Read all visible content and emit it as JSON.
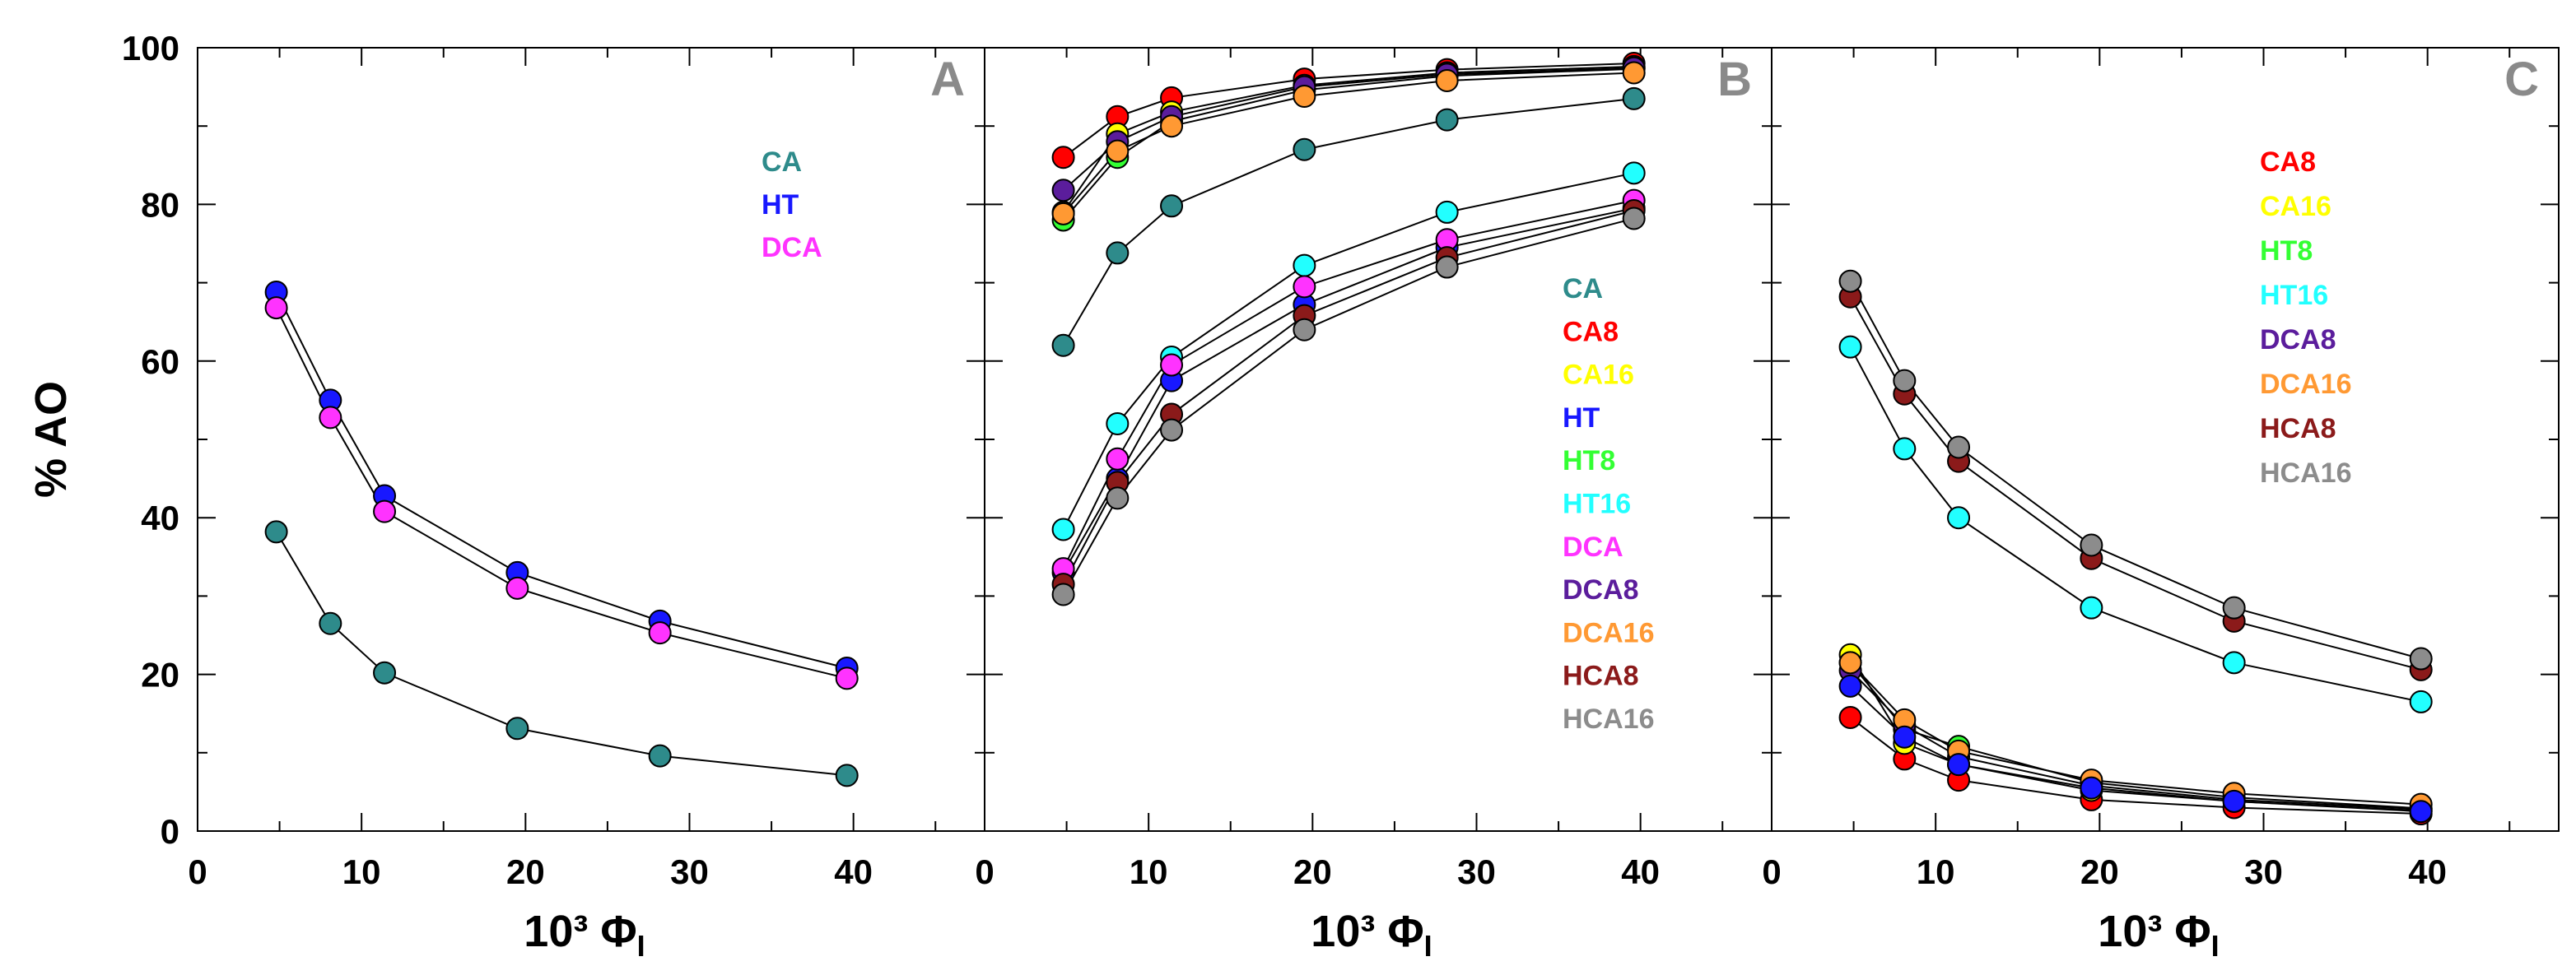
{
  "chart_data": [
    {
      "type": "scatter",
      "panel": "A",
      "ylabel": "% AO",
      "xlabel": "10³ Φ",
      "xlabel_sub": "I",
      "xlim": [
        0,
        48
      ],
      "ylim": [
        0,
        100
      ],
      "xticks": [
        "0",
        "10",
        "20",
        "30",
        "40"
      ],
      "yticks": [
        "0",
        "20",
        "40",
        "60",
        "80",
        "100"
      ],
      "x": [
        4.8,
        8.1,
        11.4,
        19.5,
        28.2,
        39.6
      ],
      "series": [
        {
          "name": "CA",
          "color": "#2e8b8b",
          "values": [
            38.2,
            26.5,
            20.2,
            13.1,
            9.6,
            7.1
          ]
        },
        {
          "name": "HT",
          "color": "#1818ff",
          "values": [
            68.8,
            55.0,
            42.8,
            33.0,
            26.8,
            20.8
          ]
        },
        {
          "name": "DCA",
          "color": "#ff33ff",
          "values": [
            66.8,
            52.8,
            40.8,
            31.0,
            25.3,
            19.5
          ]
        }
      ]
    },
    {
      "type": "scatter",
      "panel": "B",
      "xlabel": "10³ Φ",
      "xlabel_sub": "I",
      "xlim": [
        0,
        48
      ],
      "ylim": [
        0,
        100
      ],
      "xticks": [
        "0",
        "10",
        "20",
        "30",
        "40"
      ],
      "x": [
        4.8,
        8.1,
        11.4,
        19.5,
        28.2,
        39.6
      ],
      "series": [
        {
          "name": "CA",
          "color": "#2e8b8b",
          "values": [
            62.0,
            73.8,
            79.8,
            87.0,
            90.8,
            93.5
          ]
        },
        {
          "name": "CA8",
          "color": "#ff0000",
          "values": [
            86.0,
            91.2,
            93.6,
            96.0,
            97.2,
            98.0
          ]
        },
        {
          "name": "CA16",
          "color": "#ffff00",
          "values": [
            79.0,
            89.0,
            91.8,
            95.2,
            96.8,
            97.6
          ]
        },
        {
          "name": "HT",
          "color": "#1818ff",
          "values": [
            33.0,
            45.0,
            57.5,
            67.2,
            74.5,
            79.5
          ]
        },
        {
          "name": "HT8",
          "color": "#33ff33",
          "values": [
            78.0,
            86.0,
            90.6,
            94.6,
            96.4,
            97.3
          ]
        },
        {
          "name": "HT16",
          "color": "#22ffff",
          "values": [
            38.5,
            52.0,
            60.5,
            72.2,
            79.0,
            84.0
          ]
        },
        {
          "name": "DCA",
          "color": "#ff33ff",
          "values": [
            33.5,
            47.5,
            59.5,
            69.5,
            75.5,
            80.5
          ]
        },
        {
          "name": "DCA8",
          "color": "#5b1d9c",
          "values": [
            81.8,
            88.0,
            91.2,
            95.0,
            96.6,
            97.4
          ]
        },
        {
          "name": "DCA16",
          "color": "#ff9933",
          "values": [
            78.8,
            86.8,
            90.0,
            93.8,
            95.8,
            96.8
          ]
        },
        {
          "name": "HCA8",
          "color": "#8b1a1a",
          "values": [
            31.5,
            44.5,
            53.2,
            65.8,
            73.2,
            79.2
          ]
        },
        {
          "name": "HCA16",
          "color": "#8c8c8c",
          "values": [
            30.2,
            42.5,
            51.2,
            64.0,
            72.0,
            78.2
          ]
        }
      ]
    },
    {
      "type": "scatter",
      "panel": "C",
      "xlabel": "10³ Φ",
      "xlabel_sub": "I",
      "xlim": [
        0,
        48
      ],
      "ylim": [
        0,
        100
      ],
      "xticks": [
        "0",
        "10",
        "20",
        "30",
        "40"
      ],
      "x": [
        4.8,
        8.1,
        11.4,
        19.5,
        28.2,
        39.6
      ],
      "series": [
        {
          "name": "CA8",
          "color": "#ff0000",
          "values": [
            14.5,
            9.2,
            6.5,
            4.0,
            3.0,
            2.2
          ]
        },
        {
          "name": "CA16",
          "color": "#ffff00",
          "values": [
            22.5,
            11.2,
            8.5,
            5.2,
            3.8,
            2.6
          ]
        },
        {
          "name": "HT8",
          "color": "#33ff33",
          "values": [
            21.5,
            13.0,
            10.8,
            6.2,
            4.3,
            2.9
          ]
        },
        {
          "name": "HT16",
          "color": "#22ffff",
          "values": [
            61.8,
            48.8,
            40.0,
            28.5,
            21.5,
            16.5
          ]
        },
        {
          "name": "DCA8",
          "color": "#5b1d9c",
          "values": [
            20.5,
            13.5,
            9.5,
            5.8,
            4.0,
            2.8
          ]
        },
        {
          "name": "DCA16",
          "color": "#ff9933",
          "values": [
            21.5,
            14.2,
            10.2,
            6.5,
            4.8,
            3.4
          ]
        },
        {
          "name": "HCA8",
          "color": "#8b1a1a",
          "values": [
            68.2,
            55.8,
            47.2,
            34.8,
            26.8,
            20.6
          ]
        },
        {
          "name": "HCA16",
          "color": "#8c8c8c",
          "values": [
            70.2,
            57.5,
            49.0,
            36.5,
            28.5,
            22.0
          ]
        },
        {
          "name": "HT",
          "color": "#1818ff",
          "values": [
            18.5,
            12.0,
            8.5,
            5.5,
            3.8,
            2.5
          ],
          "in_legend": false
        }
      ]
    }
  ]
}
